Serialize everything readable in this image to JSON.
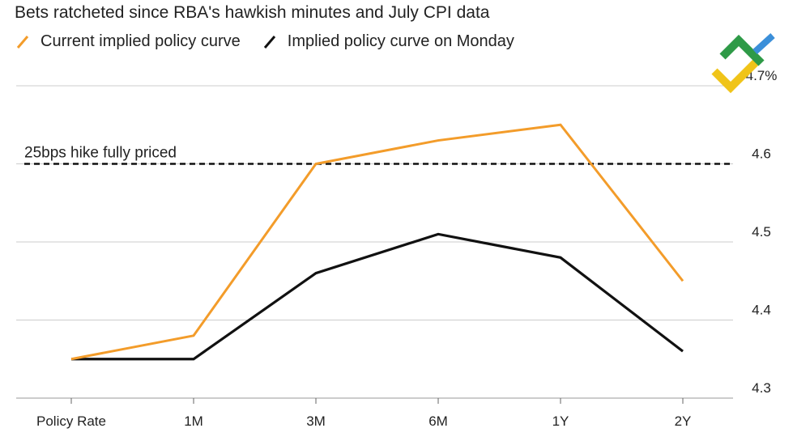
{
  "chart_data": {
    "type": "line",
    "title": "Bets ratcheted since RBA's hawkish minutes and July CPI data",
    "categories": [
      "Policy Rate",
      "1M",
      "3M",
      "6M",
      "1Y",
      "2Y"
    ],
    "series": [
      {
        "name": "Current implied policy curve",
        "color": "#f39c2a",
        "values": [
          4.35,
          4.38,
          4.6,
          4.63,
          4.65,
          4.45
        ]
      },
      {
        "name": "Implied policy curve on Monday",
        "color": "#111111",
        "values": [
          4.35,
          4.35,
          4.46,
          4.51,
          4.48,
          4.36
        ]
      }
    ],
    "y_ticks": [
      "4.3",
      "4.4",
      "4.5",
      "4.6",
      "4.7%"
    ],
    "ylim": [
      4.3,
      4.7
    ],
    "grid": true,
    "reference_line": {
      "value": 4.6,
      "label": "25bps hike fully priced",
      "style": "dashed"
    },
    "legend_position": "top-left",
    "y_axis_side": "right"
  },
  "logo": {
    "colors": [
      "#2e9a47",
      "#3b8fd9",
      "#f0c419"
    ]
  }
}
